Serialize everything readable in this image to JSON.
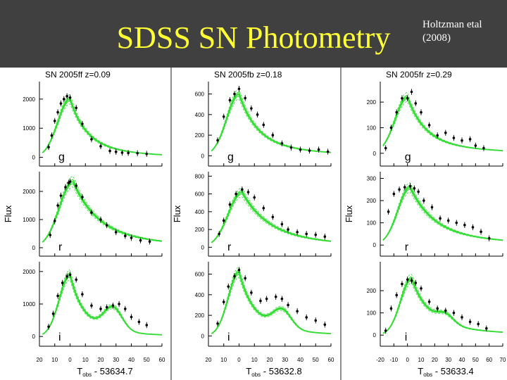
{
  "header": {
    "title": "SDSS SN Photometry",
    "citation_line1": "Holtzman etal",
    "citation_line2": "(2008)"
  },
  "colors": {
    "header_bg": "#404040",
    "title": "#ffff33",
    "model_curve": "#33dd33",
    "data_points": "#000000"
  },
  "chart_data": [
    {
      "type": "scatter",
      "title": "SN 2005ff z=0.09",
      "ylabel": "Flux",
      "xlabel": "T",
      "xlabel_sub": "obs",
      "xlabel_suffix": " - 53634.7",
      "xlim": [
        -20,
        60
      ],
      "xticks": [
        "20",
        "10",
        "0",
        "10",
        "20",
        "30",
        "40",
        "50",
        "60"
      ],
      "panels": [
        {
          "band": "g",
          "ylim": [
            -300,
            2600
          ],
          "yticks": [
            0,
            1000,
            2000
          ],
          "peak_x": 0,
          "peak": 2000,
          "rise": 8,
          "decay": 10,
          "bump": 0,
          "points": [
            [
              -14,
              350
            ],
            [
              -12,
              750
            ],
            [
              -10,
              1250
            ],
            [
              -8,
              1550
            ],
            [
              -6,
              1850
            ],
            [
              -4,
              2000
            ],
            [
              -2,
              2100
            ],
            [
              0,
              2050
            ],
            [
              4,
              1700
            ],
            [
              8,
              1150
            ],
            [
              14,
              620
            ],
            [
              20,
              380
            ],
            [
              26,
              220
            ],
            [
              30,
              190
            ],
            [
              34,
              160
            ],
            [
              38,
              150
            ],
            [
              44,
              140
            ],
            [
              50,
              120
            ]
          ]
        },
        {
          "band": "r",
          "ylim": [
            -300,
            2700
          ],
          "yticks": [
            0,
            1000,
            2000
          ],
          "peak_x": 2,
          "peak": 2350,
          "rise": 9,
          "decay": 15,
          "bump": 0,
          "points": [
            [
              -13,
              450
            ],
            [
              -10,
              950
            ],
            [
              -8,
              1500
            ],
            [
              -6,
              1850
            ],
            [
              -3,
              2150
            ],
            [
              -1,
              2300
            ],
            [
              0,
              2350
            ],
            [
              4,
              2200
            ],
            [
              8,
              1800
            ],
            [
              14,
              1250
            ],
            [
              20,
              1000
            ],
            [
              24,
              800
            ],
            [
              30,
              550
            ],
            [
              36,
              420
            ],
            [
              40,
              350
            ],
            [
              46,
              260
            ],
            [
              52,
              220
            ]
          ]
        },
        {
          "band": "i",
          "ylim": [
            -300,
            2300
          ],
          "yticks": [
            0,
            1000,
            2000
          ],
          "peak_x": 0,
          "peak": 1900,
          "rise": 7,
          "decay": 8,
          "bump": 700,
          "points": [
            [
              -14,
              300
            ],
            [
              -11,
              700
            ],
            [
              -8,
              1250
            ],
            [
              -5,
              1650
            ],
            [
              -2,
              1850
            ],
            [
              0,
              1900
            ],
            [
              4,
              1750
            ],
            [
              8,
              1300
            ],
            [
              14,
              950
            ],
            [
              20,
              850
            ],
            [
              24,
              900
            ],
            [
              28,
              950
            ],
            [
              32,
              1000
            ],
            [
              36,
              850
            ],
            [
              40,
              600
            ],
            [
              45,
              450
            ],
            [
              50,
              350
            ]
          ]
        }
      ]
    },
    {
      "type": "scatter",
      "title": "SN 2005fb z=0.18",
      "ylabel": "Flux",
      "xlabel": "T",
      "xlabel_sub": "obs",
      "xlabel_suffix": " - 53632.8",
      "xlim": [
        -20,
        60
      ],
      "xticks": [
        "20",
        "10",
        "0",
        "10",
        "20",
        "30",
        "40",
        "50",
        "60"
      ],
      "panels": [
        {
          "band": "g",
          "ylim": [
            -100,
            720
          ],
          "yticks": [
            0,
            200,
            400,
            600
          ],
          "peak_x": 0,
          "peak": 600,
          "rise": 8,
          "decay": 11,
          "bump": 0,
          "points": [
            [
              -14,
              150
            ],
            [
              -10,
              380
            ],
            [
              -6,
              540
            ],
            [
              -3,
              600
            ],
            [
              0,
              650
            ],
            [
              4,
              560
            ],
            [
              8,
              460
            ],
            [
              12,
              400
            ],
            [
              16,
              300
            ],
            [
              22,
              200
            ],
            [
              28,
              120
            ],
            [
              34,
              80
            ],
            [
              40,
              60
            ],
            [
              46,
              50
            ],
            [
              52,
              60
            ],
            [
              58,
              40
            ]
          ]
        },
        {
          "band": "r",
          "ylim": [
            -100,
            850
          ],
          "yticks": [
            0,
            200,
            400,
            600,
            800
          ],
          "peak_x": 2,
          "peak": 620,
          "rise": 9,
          "decay": 16,
          "bump": 0,
          "points": [
            [
              -13,
              150
            ],
            [
              -10,
              300
            ],
            [
              -6,
              480
            ],
            [
              -2,
              600
            ],
            [
              2,
              650
            ],
            [
              6,
              620
            ],
            [
              10,
              560
            ],
            [
              16,
              440
            ],
            [
              22,
              340
            ],
            [
              28,
              260
            ],
            [
              32,
              200
            ],
            [
              38,
              170
            ],
            [
              44,
              150
            ],
            [
              50,
              140
            ],
            [
              56,
              120
            ]
          ]
        },
        {
          "band": "i",
          "ylim": [
            -100,
            720
          ],
          "yticks": [
            0,
            200,
            400,
            600
          ],
          "peak_x": 0,
          "peak": 620,
          "rise": 7,
          "decay": 9,
          "bump": 180,
          "points": [
            [
              -14,
              120
            ],
            [
              -10,
              330
            ],
            [
              -7,
              480
            ],
            [
              -3,
              580
            ],
            [
              0,
              640
            ],
            [
              4,
              560
            ],
            [
              8,
              420
            ],
            [
              14,
              340
            ],
            [
              18,
              360
            ],
            [
              24,
              380
            ],
            [
              28,
              360
            ],
            [
              32,
              300
            ],
            [
              38,
              240
            ],
            [
              44,
              180
            ],
            [
              50,
              150
            ],
            [
              56,
              110
            ]
          ]
        }
      ]
    },
    {
      "type": "scatter",
      "title": "SN 2005fr z=0.29",
      "ylabel": "Flux",
      "xlabel": "T",
      "xlabel_sub": "obs",
      "xlabel_suffix": " - 53633.4",
      "xlim": [
        -20,
        70
      ],
      "xticks": [
        "-20",
        "-10",
        "0",
        "10",
        "20",
        "30",
        "40",
        "50",
        "60",
        "70"
      ],
      "panels": [
        {
          "band": "g",
          "ylim": [
            -50,
            280
          ],
          "yticks": [
            0,
            100,
            200
          ],
          "peak_x": 0,
          "peak": 220,
          "rise": 9,
          "decay": 12,
          "bump": 0,
          "points": [
            [
              -16,
              20
            ],
            [
              -12,
              100
            ],
            [
              -8,
              160
            ],
            [
              -4,
              215
            ],
            [
              0,
              215
            ],
            [
              3,
              240
            ],
            [
              6,
              195
            ],
            [
              10,
              160
            ],
            [
              16,
              110
            ],
            [
              22,
              70
            ],
            [
              28,
              80
            ],
            [
              34,
              60
            ],
            [
              40,
              50
            ],
            [
              46,
              55
            ],
            [
              50,
              30
            ],
            [
              56,
              20
            ]
          ]
        },
        {
          "band": "r",
          "ylim": [
            -50,
            330
          ],
          "yticks": [
            0,
            100,
            200,
            300
          ],
          "peak_x": 2,
          "peak": 260,
          "rise": 9,
          "decay": 16,
          "bump": 0,
          "points": [
            [
              -14,
              150
            ],
            [
              -10,
              230
            ],
            [
              -6,
              250
            ],
            [
              -2,
              260
            ],
            [
              2,
              265
            ],
            [
              5,
              255
            ],
            [
              8,
              240
            ],
            [
              12,
              200
            ],
            [
              18,
              170
            ],
            [
              24,
              120
            ],
            [
              30,
              110
            ],
            [
              36,
              100
            ],
            [
              42,
              90
            ],
            [
              48,
              80
            ],
            [
              54,
              60
            ],
            [
              60,
              30
            ]
          ]
        },
        {
          "band": "i",
          "ylim": [
            -50,
            330
          ],
          "yticks": [
            0,
            100,
            200
          ],
          "peak_x": 3,
          "peak": 255,
          "rise": 8,
          "decay": 12,
          "bump": 40,
          "points": [
            [
              -16,
              20
            ],
            [
              -12,
              120
            ],
            [
              -8,
              180
            ],
            [
              -4,
              230
            ],
            [
              0,
              250
            ],
            [
              3,
              245
            ],
            [
              6,
              235
            ],
            [
              10,
              210
            ],
            [
              16,
              150
            ],
            [
              22,
              120
            ],
            [
              28,
              110
            ],
            [
              34,
              100
            ],
            [
              40,
              80
            ],
            [
              46,
              60
            ],
            [
              52,
              50
            ],
            [
              58,
              30
            ]
          ]
        }
      ]
    }
  ]
}
